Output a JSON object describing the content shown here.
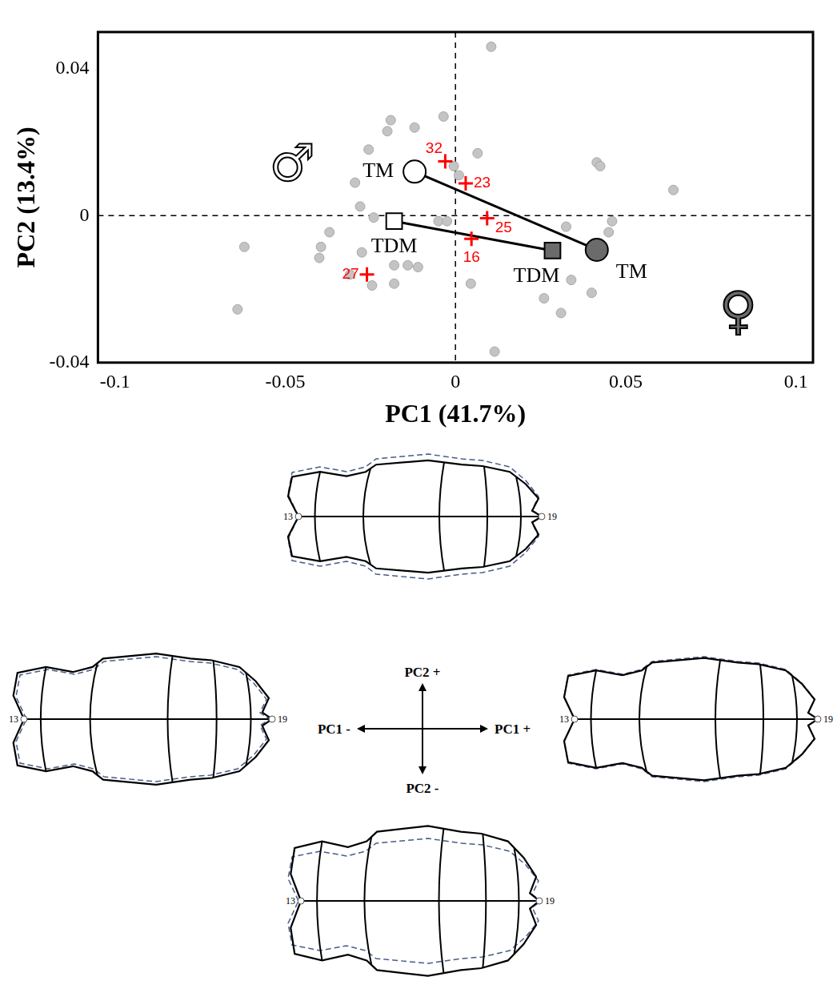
{
  "chart_data": {
    "type": "scatter",
    "x_label": "PC1 (41.7%)",
    "y_label": "PC2 (13.4%)",
    "xlim": [
      -0.105,
      0.105
    ],
    "ylim": [
      -0.04,
      0.05
    ],
    "xticks": [
      -0.1,
      -0.05,
      0,
      0.05,
      0.1
    ],
    "yticks": [
      -0.04,
      0,
      0.04
    ],
    "grid": false,
    "reference_lines": {
      "x": 0,
      "y": 0,
      "line_style": "dashed"
    },
    "points": {
      "x": [
        0.0105,
        -0.019,
        -0.012,
        -0.02,
        -0.0035,
        -0.0255,
        0.0065,
        -0.0295,
        -0.0005,
        0.001,
        0.0415,
        0.0425,
        0.064,
        -0.028,
        -0.024,
        -0.037,
        -0.005,
        -0.0025,
        0.0325,
        0.046,
        0.045,
        -0.062,
        -0.0395,
        -0.04,
        -0.0275,
        -0.014,
        -0.018,
        -0.011,
        -0.031,
        -0.0245,
        -0.018,
        0.0045,
        0.034,
        0.026,
        0.04,
        0.031,
        -0.064,
        0.0115
      ],
      "y": [
        0.046,
        0.026,
        0.024,
        0.023,
        0.027,
        0.018,
        0.017,
        0.009,
        0.0135,
        0.011,
        0.0145,
        0.0135,
        0.007,
        0.0025,
        -0.0005,
        -0.0045,
        -0.0015,
        -0.0015,
        -0.003,
        -0.0015,
        -0.0045,
        -0.0085,
        -0.0085,
        -0.0115,
        -0.01,
        -0.0135,
        -0.0135,
        -0.014,
        -0.016,
        -0.019,
        -0.0185,
        -0.0185,
        -0.0175,
        -0.0225,
        -0.021,
        -0.0265,
        -0.0255,
        -0.037
      ],
      "color": "#c4c4c4",
      "marker": "circle"
    },
    "series": [
      {
        "label": "TM",
        "marker": "circle",
        "line_style": "solid",
        "x": [
          -0.012,
          0.0415
        ],
        "y": [
          0.012,
          -0.0093
        ],
        "colors": [
          "#ffffff",
          "#6b6b6b"
        ]
      },
      {
        "label": "TDM",
        "marker": "square",
        "line_style": "solid",
        "x": [
          -0.018,
          0.0285
        ],
        "y": [
          -0.0015,
          -0.0095
        ],
        "colors": [
          "#ffffff",
          "#6b6b6b"
        ]
      }
    ],
    "specimens": {
      "labels": [
        "32",
        "23",
        "25",
        "16",
        "27"
      ],
      "x": [
        -0.003,
        0.003,
        0.0093,
        0.0047,
        -0.026
      ],
      "y": [
        0.0148,
        0.0088,
        -0.0007,
        -0.0063,
        -0.016
      ],
      "color": "#ff0000",
      "marker": "cross"
    },
    "sex_symbols": [
      {
        "label": "♂",
        "x": -0.048,
        "y": 0.013,
        "color": "#ffffff"
      },
      {
        "label": "♀",
        "x": 0.083,
        "y": -0.027,
        "color": "#6b6b6b"
      }
    ]
  },
  "shape_panels": {
    "directions": {
      "top": "PC2 +",
      "left": "PC1 -",
      "right": "PC1 +",
      "bottom": "PC2 -"
    },
    "landmarks": [
      "13",
      "19"
    ]
  }
}
